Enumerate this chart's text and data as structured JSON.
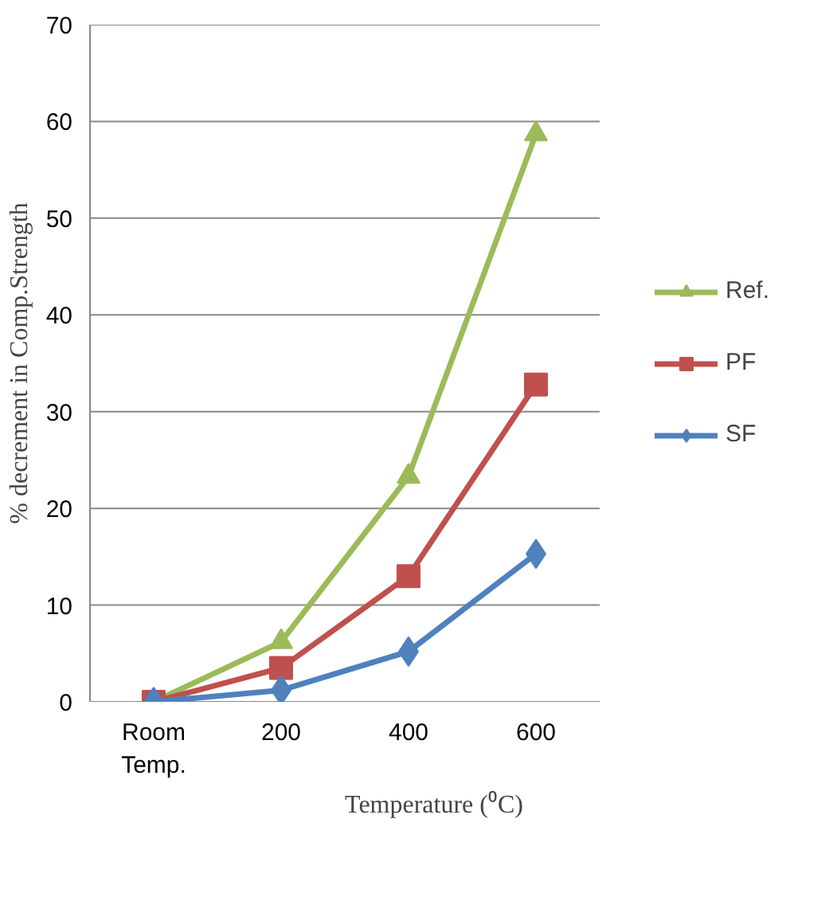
{
  "chart_data": {
    "type": "line",
    "xlabel": "Temperature (⁰C)",
    "ylabel": "% decrement in Comp.Strength",
    "categories": [
      "Room Temp.",
      "200",
      "400",
      "600"
    ],
    "series": [
      {
        "name": "Ref.",
        "color": "#9bbb59",
        "marker": "triangle",
        "values": [
          0,
          6.2,
          23.3,
          58.7
        ]
      },
      {
        "name": "PF",
        "color": "#c0504d",
        "marker": "square",
        "values": [
          0,
          3.5,
          13,
          32.8
        ]
      },
      {
        "name": "SF",
        "color": "#4f81bd",
        "marker": "diamond",
        "values": [
          0,
          1.2,
          5.2,
          15.3
        ]
      }
    ],
    "ylim": [
      0,
      70
    ],
    "yticks": [
      0,
      10,
      20,
      30,
      40,
      50,
      60,
      70
    ],
    "grid": "y",
    "legend": "right"
  }
}
